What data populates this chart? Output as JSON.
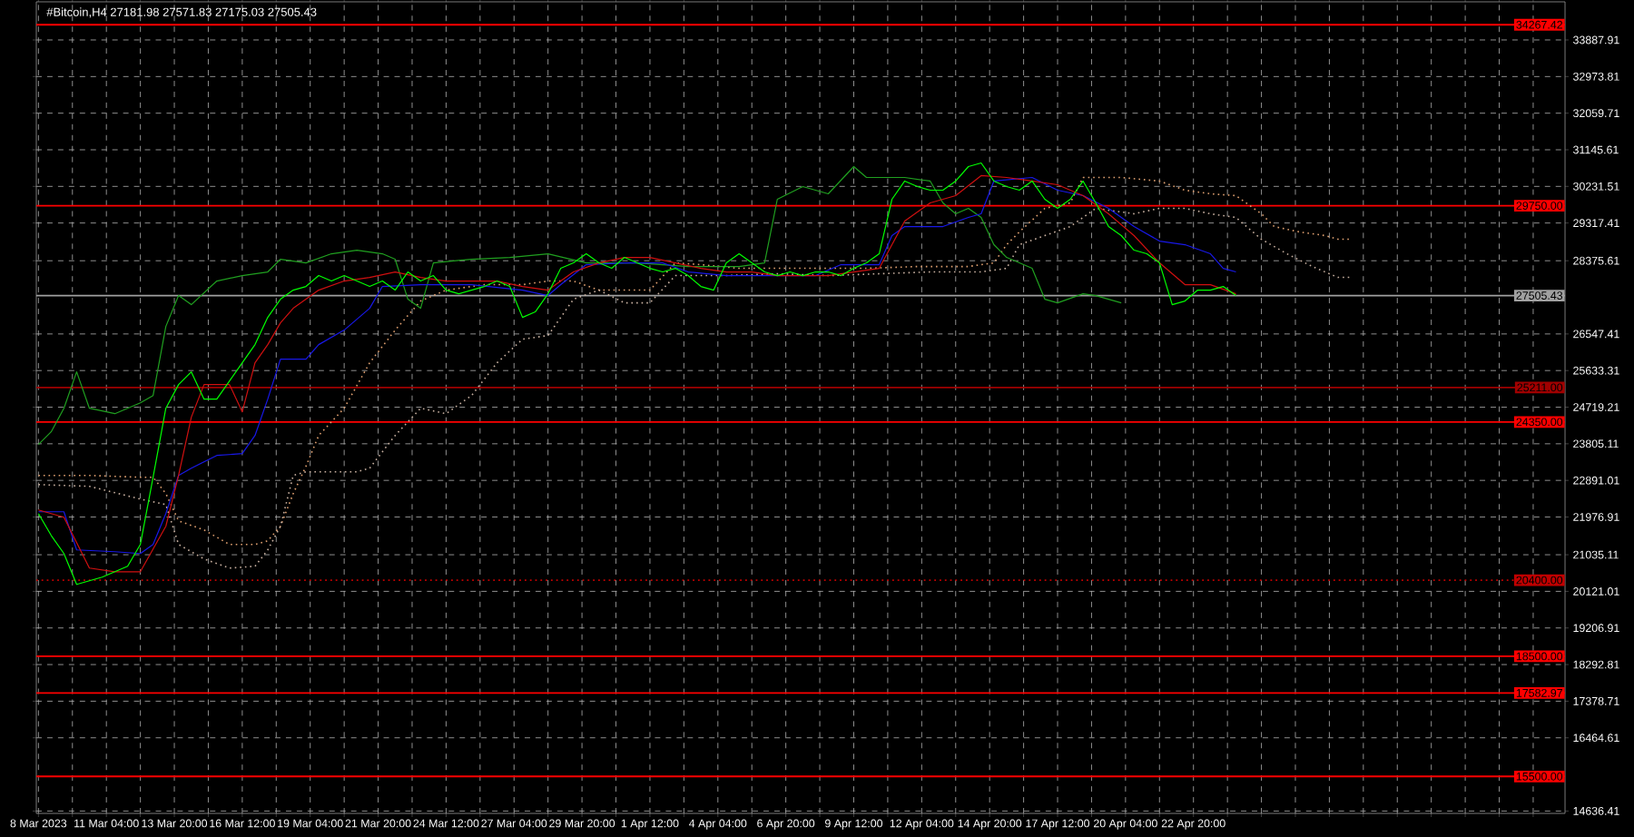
{
  "chart_data": {
    "type": "line",
    "title": "#Bitcoin,H4  27181.98 27571.83 27175.03 27505.43",
    "xlim": [
      "2023-03-08T10:00",
      "2023-05-07T10:00"
    ],
    "ylim": [
      14577,
      34840
    ],
    "xticks": [
      {
        "value": "2023-03-08T12:00",
        "label": "8 Mar 2023"
      },
      {
        "value": "2023-03-09T20:00",
        "label": null
      },
      {
        "value": "2023-03-11T04:00",
        "label": "11 Mar 04:00"
      },
      {
        "value": "2023-03-12T12:00",
        "label": null
      },
      {
        "value": "2023-03-13T20:00",
        "label": "13 Mar 20:00"
      },
      {
        "value": "2023-03-15T04:00",
        "label": null
      },
      {
        "value": "2023-03-16T12:00",
        "label": "16 Mar 12:00"
      },
      {
        "value": "2023-03-17T20:00",
        "label": null
      },
      {
        "value": "2023-03-19T04:00",
        "label": "19 Mar 04:00"
      },
      {
        "value": "2023-03-20T12:00",
        "label": null
      },
      {
        "value": "2023-03-21T20:00",
        "label": "21 Mar 20:00"
      },
      {
        "value": "2023-03-23T04:00",
        "label": null
      },
      {
        "value": "2023-03-24T12:00",
        "label": "24 Mar 12:00"
      },
      {
        "value": "2023-03-25T20:00",
        "label": null
      },
      {
        "value": "2023-03-27T04:00",
        "label": "27 Mar 04:00"
      },
      {
        "value": "2023-03-28T12:00",
        "label": null
      },
      {
        "value": "2023-03-29T20:00",
        "label": "29 Mar 20:00"
      },
      {
        "value": "2023-03-31T04:00",
        "label": null
      },
      {
        "value": "2023-04-01T12:00",
        "label": "1 Apr 12:00"
      },
      {
        "value": "2023-04-02T20:00",
        "label": null
      },
      {
        "value": "2023-04-04T04:00",
        "label": "4 Apr 04:00"
      },
      {
        "value": "2023-04-05T12:00",
        "label": null
      },
      {
        "value": "2023-04-06T20:00",
        "label": "6 Apr 20:00"
      },
      {
        "value": "2023-04-08T04:00",
        "label": null
      },
      {
        "value": "2023-04-09T12:00",
        "label": "9 Apr 12:00"
      },
      {
        "value": "2023-04-10T20:00",
        "label": null
      },
      {
        "value": "2023-04-12T04:00",
        "label": "12 Apr 04:00"
      },
      {
        "value": "2023-04-13T12:00",
        "label": null
      },
      {
        "value": "2023-04-14T20:00",
        "label": "14 Apr 20:00"
      },
      {
        "value": "2023-04-16T04:00",
        "label": null
      },
      {
        "value": "2023-04-17T12:00",
        "label": "17 Apr 12:00"
      },
      {
        "value": "2023-04-18T20:00",
        "label": null
      },
      {
        "value": "2023-04-20T04:00",
        "label": "20 Apr 04:00"
      },
      {
        "value": "2023-04-21T12:00",
        "label": null
      },
      {
        "value": "2023-04-22T20:00",
        "label": "22 Apr 20:00"
      },
      {
        "value": "2023-04-24T04:00",
        "label": null
      },
      {
        "value": "2023-04-25T12:00",
        "label": null
      },
      {
        "value": "2023-04-26T20:00",
        "label": null
      },
      {
        "value": "2023-04-28T04:00",
        "label": null
      },
      {
        "value": "2023-04-29T12:00",
        "label": null
      },
      {
        "value": "2023-04-30T20:00",
        "label": null
      },
      {
        "value": "2023-05-02T04:00",
        "label": null
      },
      {
        "value": "2023-05-03T12:00",
        "label": null
      },
      {
        "value": "2023-05-04T20:00",
        "label": null
      },
      {
        "value": "2023-05-06T04:00",
        "label": null
      }
    ],
    "yticks": [
      14636.41,
      16464.61,
      17378.71,
      18292.81,
      19206.91,
      20121.01,
      21035.11,
      21976.91,
      22891.01,
      23805.11,
      24719.21,
      25633.31,
      26547.41,
      28375.61,
      29317.41,
      30231.51,
      31145.61,
      32059.71,
      32973.81,
      33887.91
    ],
    "grid": true,
    "ref_lines": [
      {
        "axis": "y",
        "value": 34267.42,
        "label": "34267.42",
        "color": "#ff0000"
      },
      {
        "axis": "y",
        "value": 29750.0,
        "label": "29750.00",
        "color": "#ff0000"
      },
      {
        "axis": "y",
        "value": 27505.43,
        "label": "27505.43",
        "color": "#a0a0a0"
      },
      {
        "axis": "y",
        "value": 25211.0,
        "label": "25211.00",
        "color": "#a00000"
      },
      {
        "axis": "y",
        "value": 24350.0,
        "label": "24350.00",
        "color": "#ff0000"
      },
      {
        "axis": "y",
        "value": 20400.0,
        "label": "20400.00",
        "color": "#c00000",
        "line_style": "dotted"
      },
      {
        "axis": "y",
        "value": 18500.0,
        "label": "18500.00",
        "color": "#ff0000"
      },
      {
        "axis": "y",
        "value": 17582.97,
        "label": "17582.97",
        "color": "#ff0000"
      },
      {
        "axis": "y",
        "value": 15500.0,
        "label": "15500.00",
        "color": "#ff0000"
      }
    ],
    "series": [
      {
        "color": "#e0a070",
        "line_style": "dotted",
        "x": [
          "2023-03-08T12:00",
          "2023-03-10T12:00",
          "2023-03-12T12:00",
          "2023-03-13T00:00",
          "2023-03-13T12:00",
          "2023-03-14T00:00",
          "2023-03-15T00:00",
          "2023-03-16T00:00",
          "2023-03-17T00:00",
          "2023-03-17T12:00",
          "2023-03-18T00:00",
          "2023-03-18T12:00",
          "2023-03-19T00:00",
          "2023-03-19T12:00",
          "2023-03-20T12:00",
          "2023-03-21T12:00",
          "2023-03-22T12:00",
          "2023-03-23T12:00",
          "2023-03-24T12:00",
          "2023-03-26T00:00",
          "2023-03-27T12:00",
          "2023-03-28T12:00",
          "2023-03-29T12:00",
          "2023-03-30T12:00",
          "2023-03-31T12:00",
          "2023-04-01T12:00",
          "2023-04-02T12:00",
          "2023-04-03T12:00",
          "2023-04-05T00:00",
          "2023-04-06T12:00",
          "2023-04-08T00:00",
          "2023-04-10T00:00",
          "2023-04-12T00:00",
          "2023-04-14T00:00",
          "2023-04-15T00:00",
          "2023-04-15T12:00",
          "2023-04-16T00:00",
          "2023-04-17T00:00",
          "2023-04-18T00:00",
          "2023-04-18T12:00",
          "2023-04-20T00:00",
          "2023-04-21T12:00",
          "2023-04-22T12:00",
          "2023-04-23T12:00",
          "2023-04-24T12:00",
          "2023-04-25T12:00",
          "2023-04-26T00:00",
          "2023-04-27T00:00",
          "2023-04-28T00:00",
          "2023-04-28T12:00",
          "2023-04-29T00:00"
        ],
        "values": [
          23015,
          23015,
          22970,
          22970,
          22562,
          21881,
          21654,
          21291,
          21291,
          21382,
          21745,
          22562,
          23242,
          24013,
          24693,
          25827,
          26644,
          27370,
          27642,
          27778,
          27778,
          27869,
          27869,
          27642,
          27642,
          27642,
          28322,
          28277,
          28186,
          28186,
          28186,
          28186,
          28231,
          28231,
          28322,
          28776,
          29094,
          29683,
          29819,
          30454,
          30454,
          30364,
          30137,
          30046,
          30000,
          29547,
          29229,
          29094,
          29003,
          28912,
          28912
        ]
      },
      {
        "color": "#c8b0a0",
        "line_style": "dotted",
        "x": [
          "2023-03-08T12:00",
          "2023-03-10T12:00",
          "2023-03-12T12:00",
          "2023-03-13T12:00",
          "2023-03-14T00:00",
          "2023-03-15T00:00",
          "2023-03-16T00:00",
          "2023-03-17T00:00",
          "2023-03-17T12:00",
          "2023-03-18T00:00",
          "2023-03-18T12:00",
          "2023-03-19T00:00",
          "2023-03-21T00:00",
          "2023-03-21T12:00",
          "2023-03-22T12:00",
          "2023-03-23T12:00",
          "2023-03-24T12:00",
          "2023-03-25T12:00",
          "2023-03-26T12:00",
          "2023-03-27T12:00",
          "2023-03-28T12:00",
          "2023-03-29T00:00",
          "2023-03-29T12:00",
          "2023-03-30T12:00",
          "2023-03-31T12:00",
          "2023-04-01T12:00",
          "2023-04-02T12:00",
          "2023-04-04T12:00",
          "2023-04-06T12:00",
          "2023-04-08T12:00",
          "2023-04-10T12:00",
          "2023-04-12T12:00",
          "2023-04-14T12:00",
          "2023-04-15T12:00",
          "2023-04-16T00:00",
          "2023-04-17T00:00",
          "2023-04-18T00:00",
          "2023-04-19T00:00",
          "2023-04-20T12:00",
          "2023-04-21T12:00",
          "2023-04-22T12:00",
          "2023-04-23T12:00",
          "2023-04-24T12:00",
          "2023-04-25T12:00",
          "2023-04-26T12:00",
          "2023-04-27T12:00",
          "2023-04-28T12:00",
          "2023-04-29T00:00"
        ],
        "values": [
          22786,
          22743,
          22425,
          22289,
          21291,
          20929,
          20702,
          20747,
          21155,
          21745,
          23015,
          23106,
          23106,
          23196,
          24013,
          24693,
          24557,
          25011,
          25827,
          26417,
          26508,
          26961,
          27415,
          27642,
          27324,
          27324,
          28005,
          28005,
          28050,
          28005,
          28050,
          28096,
          28096,
          28186,
          28776,
          29003,
          29229,
          29683,
          29547,
          29683,
          29683,
          29547,
          29456,
          28912,
          28549,
          28231,
          27960,
          27960
        ]
      },
      {
        "color": "#20a020",
        "x": [
          "2023-03-08T12:00",
          "2023-03-09T00:00",
          "2023-03-09T12:00",
          "2023-03-10T00:00",
          "2023-03-10T12:00",
          "2023-03-11T12:00",
          "2023-03-12T12:00",
          "2023-03-13T00:00",
          "2023-03-13T12:00",
          "2023-03-14T00:00",
          "2023-03-14T12:00",
          "2023-03-15T12:00",
          "2023-03-16T12:00",
          "2023-03-17T12:00",
          "2023-03-18T00:00",
          "2023-03-19T00:00",
          "2023-03-20T00:00",
          "2023-03-21T00:00",
          "2023-03-22T00:00",
          "2023-03-22T12:00",
          "2023-03-23T00:00",
          "2023-03-23T12:00",
          "2023-03-24T00:00",
          "2023-03-25T12:00",
          "2023-03-27T00:00",
          "2023-03-28T12:00",
          "2023-03-30T00:00",
          "2023-04-01T00:00",
          "2023-04-03T00:00",
          "2023-04-05T00:00",
          "2023-04-06T00:00",
          "2023-04-06T12:00",
          "2023-04-07T12:00",
          "2023-04-08T12:00",
          "2023-04-09T12:00",
          "2023-04-10T00:00",
          "2023-04-10T12:00",
          "2023-04-11T12:00",
          "2023-04-12T12:00",
          "2023-04-13T00:00",
          "2023-04-13T12:00",
          "2023-04-14T00:00",
          "2023-04-14T12:00",
          "2023-04-15T00:00",
          "2023-04-15T12:00",
          "2023-04-16T00:00",
          "2023-04-16T12:00",
          "2023-04-17T00:00",
          "2023-04-17T12:00",
          "2023-04-18T12:00",
          "2023-04-19T00:00",
          "2023-04-19T12:00",
          "2023-04-20T00:00"
        ],
        "values": [
          23786,
          24104,
          24693,
          25600,
          24693,
          24557,
          24829,
          25011,
          26734,
          27506,
          27279,
          27869,
          28005,
          28096,
          28413,
          28322,
          28549,
          28640,
          28549,
          28413,
          27415,
          27188,
          28322,
          28413,
          28458,
          28549,
          28322,
          28322,
          28231,
          28231,
          28322,
          29910,
          30227,
          30046,
          30726,
          30454,
          30454,
          30454,
          30364,
          29819,
          29547,
          29683,
          29456,
          28776,
          28458,
          28322,
          28186,
          27415,
          27324,
          27551,
          27506,
          27415,
          27324
        ]
      },
      {
        "color": "#1818e8",
        "x": [
          "2023-03-08T12:00",
          "2023-03-09T12:00",
          "2023-03-10T00:00",
          "2023-03-11T12:00",
          "2023-03-12T12:00",
          "2023-03-13T00:00",
          "2023-03-13T12:00",
          "2023-03-14T00:00",
          "2023-03-14T12:00",
          "2023-03-15T12:00",
          "2023-03-16T12:00",
          "2023-03-17T00:00",
          "2023-03-17T12:00",
          "2023-03-18T00:00",
          "2023-03-19T00:00",
          "2023-03-19T12:00",
          "2023-03-20T12:00",
          "2023-03-21T12:00",
          "2023-03-22T00:00",
          "2023-03-23T12:00",
          "2023-03-25T12:00",
          "2023-03-27T12:00",
          "2023-03-28T12:00",
          "2023-03-29T00:00",
          "2023-03-30T00:00",
          "2023-03-31T12:00",
          "2023-04-02T00:00",
          "2023-04-03T00:00",
          "2023-04-04T12:00",
          "2023-04-06T12:00",
          "2023-04-08T00:00",
          "2023-04-09T00:00",
          "2023-04-10T12:00",
          "2023-04-11T00:00",
          "2023-04-11T12:00",
          "2023-04-13T00:00",
          "2023-04-14T00:00",
          "2023-04-14T12:00",
          "2023-04-15T00:00",
          "2023-04-16T12:00",
          "2023-04-17T12:00",
          "2023-04-18T12:00",
          "2023-04-19T12:00",
          "2023-04-20T12:00",
          "2023-04-21T12:00",
          "2023-04-22T12:00",
          "2023-04-23T12:00",
          "2023-04-24T00:00",
          "2023-04-24T12:00"
        ],
        "values": [
          22108,
          22108,
          21155,
          21110,
          21065,
          21291,
          22062,
          23015,
          23196,
          23514,
          23559,
          24013,
          24920,
          25918,
          25918,
          26281,
          26644,
          27188,
          27733,
          27778,
          27778,
          27642,
          27506,
          27778,
          28277,
          28322,
          28322,
          28096,
          28005,
          28005,
          28005,
          28277,
          28277,
          29003,
          29229,
          29229,
          29456,
          29547,
          30364,
          30454,
          30137,
          30000,
          29683,
          29229,
          28866,
          28776,
          28549,
          28186,
          28096
        ]
      },
      {
        "color": "#d01010",
        "x": [
          "2023-03-08T12:00",
          "2023-03-09T12:00",
          "2023-03-10T12:00",
          "2023-03-11T12:00",
          "2023-03-12T12:00",
          "2023-03-13T12:00",
          "2023-03-14T00:00",
          "2023-03-14T12:00",
          "2023-03-15T00:00",
          "2023-03-15T12:00",
          "2023-03-16T00:00",
          "2023-03-16T12:00",
          "2023-03-17T00:00",
          "2023-03-17T12:00",
          "2023-03-18T00:00",
          "2023-03-18T12:00",
          "2023-03-19T12:00",
          "2023-03-20T12:00",
          "2023-03-21T12:00",
          "2023-03-22T12:00",
          "2023-03-23T12:00",
          "2023-03-24T12:00",
          "2023-03-25T12:00",
          "2023-03-26T12:00",
          "2023-03-27T12:00",
          "2023-03-28T12:00",
          "2023-03-29T12:00",
          "2023-03-30T12:00",
          "2023-03-31T12:00",
          "2023-04-01T12:00",
          "2023-04-02T12:00",
          "2023-04-03T12:00",
          "2023-04-04T12:00",
          "2023-04-05T12:00",
          "2023-04-06T12:00",
          "2023-04-07T12:00",
          "2023-04-08T12:00",
          "2023-04-09T12:00",
          "2023-04-10T12:00",
          "2023-04-11T12:00",
          "2023-04-12T12:00",
          "2023-04-13T12:00",
          "2023-04-14T12:00",
          "2023-04-15T12:00",
          "2023-04-16T12:00",
          "2023-04-17T12:00",
          "2023-04-18T12:00",
          "2023-04-19T12:00",
          "2023-04-20T12:00",
          "2023-04-21T12:00",
          "2023-04-22T12:00",
          "2023-04-23T12:00",
          "2023-04-24T12:00"
        ],
        "values": [
          22153,
          21972,
          20702,
          20611,
          20611,
          21745,
          23015,
          24467,
          25283,
          25283,
          25283,
          24603,
          25827,
          26281,
          26825,
          27188,
          27642,
          27869,
          27959,
          28096,
          27959,
          27869,
          27869,
          27869,
          27733,
          27642,
          28096,
          28322,
          28458,
          28458,
          28322,
          28186,
          28096,
          28096,
          28005,
          28005,
          28005,
          28096,
          28186,
          29366,
          29819,
          30000,
          30500,
          30454,
          30364,
          30273,
          30000,
          29547,
          29003,
          28322,
          27778,
          27778,
          27551
        ]
      },
      {
        "color": "#00ff00",
        "x": [
          "2023-03-08T12:00",
          "2023-03-09T00:00",
          "2023-03-09T12:00",
          "2023-03-10T00:00",
          "2023-03-10T12:00",
          "2023-03-11T00:00",
          "2023-03-11T12:00",
          "2023-03-12T00:00",
          "2023-03-12T12:00",
          "2023-03-13T00:00",
          "2023-03-13T12:00",
          "2023-03-14T00:00",
          "2023-03-14T12:00",
          "2023-03-15T00:00",
          "2023-03-15T12:00",
          "2023-03-16T00:00",
          "2023-03-16T12:00",
          "2023-03-17T00:00",
          "2023-03-17T12:00",
          "2023-03-18T00:00",
          "2023-03-18T12:00",
          "2023-03-19T00:00",
          "2023-03-19T12:00",
          "2023-03-20T00:00",
          "2023-03-20T12:00",
          "2023-03-21T00:00",
          "2023-03-21T12:00",
          "2023-03-22T00:00",
          "2023-03-22T12:00",
          "2023-03-23T00:00",
          "2023-03-23T12:00",
          "2023-03-24T00:00",
          "2023-03-24T12:00",
          "2023-03-25T00:00",
          "2023-03-25T12:00",
          "2023-03-26T00:00",
          "2023-03-26T12:00",
          "2023-03-27T00:00",
          "2023-03-27T12:00",
          "2023-03-28T00:00",
          "2023-03-28T12:00",
          "2023-03-29T00:00",
          "2023-03-29T12:00",
          "2023-03-30T00:00",
          "2023-03-30T12:00",
          "2023-03-31T00:00",
          "2023-03-31T12:00",
          "2023-04-01T00:00",
          "2023-04-01T12:00",
          "2023-04-02T00:00",
          "2023-04-02T12:00",
          "2023-04-03T00:00",
          "2023-04-03T12:00",
          "2023-04-04T00:00",
          "2023-04-04T12:00",
          "2023-04-05T00:00",
          "2023-04-05T12:00",
          "2023-04-06T00:00",
          "2023-04-06T12:00",
          "2023-04-07T00:00",
          "2023-04-07T12:00",
          "2023-04-08T00:00",
          "2023-04-08T12:00",
          "2023-04-09T00:00",
          "2023-04-09T12:00",
          "2023-04-10T00:00",
          "2023-04-10T12:00",
          "2023-04-11T00:00",
          "2023-04-11T12:00",
          "2023-04-12T00:00",
          "2023-04-12T12:00",
          "2023-04-13T00:00",
          "2023-04-13T12:00",
          "2023-04-14T00:00",
          "2023-04-14T12:00",
          "2023-04-15T00:00",
          "2023-04-15T12:00",
          "2023-04-16T00:00",
          "2023-04-16T12:00",
          "2023-04-17T00:00",
          "2023-04-17T12:00",
          "2023-04-18T00:00",
          "2023-04-18T12:00",
          "2023-04-19T00:00",
          "2023-04-19T12:00",
          "2023-04-20T00:00",
          "2023-04-20T12:00",
          "2023-04-21T00:00",
          "2023-04-21T12:00",
          "2023-04-22T00:00",
          "2023-04-22T12:00",
          "2023-04-23T00:00",
          "2023-04-23T12:00",
          "2023-04-24T00:00",
          "2023-04-24T12:00"
        ],
        "values": [
          22062,
          21517,
          21065,
          20294,
          20384,
          20475,
          20611,
          20747,
          21291,
          22970,
          24693,
          25283,
          25600,
          24920,
          24920,
          25374,
          25827,
          26281,
          26961,
          27415,
          27642,
          27733,
          28005,
          27869,
          28005,
          27869,
          27733,
          27869,
          27642,
          28096,
          27869,
          28005,
          27642,
          27551,
          27642,
          27733,
          27869,
          27733,
          26961,
          27098,
          27551,
          28186,
          28322,
          28549,
          28322,
          28186,
          28458,
          28322,
          28186,
          28096,
          28186,
          28005,
          27733,
          27642,
          28322,
          28549,
          28322,
          28096,
          28005,
          28096,
          28005,
          28096,
          28096,
          28005,
          28186,
          28322,
          28549,
          29910,
          30364,
          30227,
          30137,
          30137,
          30364,
          30726,
          30817,
          30364,
          30227,
          30137,
          30364,
          29910,
          29683,
          29910,
          30364,
          29819,
          29229,
          29003,
          28640,
          28549,
          28322,
          27279,
          27370,
          27642,
          27642,
          27733,
          27505.43
        ]
      }
    ]
  }
}
